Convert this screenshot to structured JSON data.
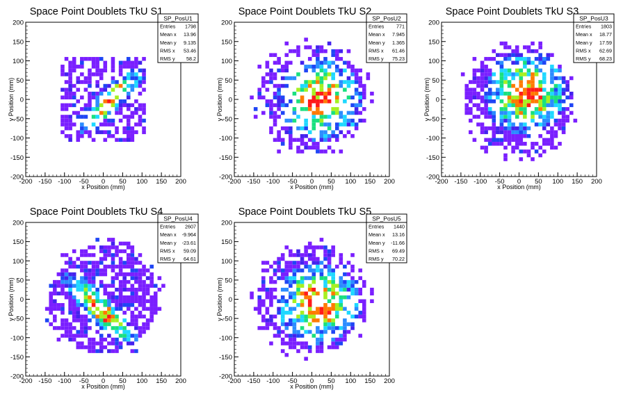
{
  "chart_data": [
    {
      "type": "heatmap",
      "title": "Space Point Doublets TkU S1",
      "xlabel": "x Position (mm)",
      "ylabel": "y Position (mm)",
      "xlim": [
        -200,
        200
      ],
      "ylim": [
        -200,
        200
      ],
      "xticks": [
        -200,
        -150,
        -100,
        -50,
        0,
        50,
        100,
        150,
        200
      ],
      "yticks": [
        -200,
        -150,
        -100,
        -50,
        0,
        50,
        100,
        150,
        200
      ],
      "bin_size": 10,
      "distribution": {
        "shape": "diagonal-band",
        "center": [
          20,
          0
        ],
        "spread": 90,
        "density": 0.55,
        "seed": 11
      },
      "stats": {
        "name": "SP_PosU1",
        "rows": [
          {
            "label": "Entries",
            "value": "1798"
          },
          {
            "label": "Mean x",
            "value": "13.96"
          },
          {
            "label": "Mean y",
            "value": "9.135"
          },
          {
            "label": "RMS x",
            "value": "53.46"
          },
          {
            "label": "RMS y",
            "value": "58.2"
          }
        ]
      }
    },
    {
      "type": "heatmap",
      "title": "Space Point Doublets TkU S2",
      "xlabel": "x Position (mm)",
      "ylabel": "y Position (mm)",
      "xlim": [
        -200,
        200
      ],
      "ylim": [
        -200,
        200
      ],
      "xticks": [
        -200,
        -150,
        -100,
        -50,
        0,
        50,
        100,
        150,
        200
      ],
      "yticks": [
        -200,
        -150,
        -100,
        -50,
        0,
        50,
        100,
        150,
        200
      ],
      "bin_size": 10,
      "distribution": {
        "shape": "blob",
        "center": [
          20,
          0
        ],
        "spread": 140,
        "density": 0.45,
        "seed": 22
      },
      "stats": {
        "name": "SP_PosU2",
        "rows": [
          {
            "label": "Entries",
            "value": "771"
          },
          {
            "label": "Mean x",
            "value": "7.945"
          },
          {
            "label": "Mean y",
            "value": "1.365"
          },
          {
            "label": "RMS x",
            "value": "61.46"
          },
          {
            "label": "RMS y",
            "value": "75.23"
          }
        ]
      }
    },
    {
      "type": "heatmap",
      "title": "Space Point Doublets TkU S3",
      "xlabel": "x Position (mm)",
      "ylabel": "y Position (mm)",
      "xlim": [
        -200,
        200
      ],
      "ylim": [
        -200,
        200
      ],
      "xticks": [
        -200,
        -150,
        -100,
        -50,
        0,
        50,
        100,
        150,
        200
      ],
      "yticks": [
        -200,
        -150,
        -100,
        -50,
        0,
        50,
        100,
        150,
        200
      ],
      "bin_size": 10,
      "distribution": {
        "shape": "blob",
        "center": [
          20,
          15
        ],
        "spread": 140,
        "density": 0.6,
        "seed": 33
      },
      "stats": {
        "name": "SP_PosU3",
        "rows": [
          {
            "label": "Entries",
            "value": "1803"
          },
          {
            "label": "Mean x",
            "value": "18.77"
          },
          {
            "label": "Mean y",
            "value": "17.59"
          },
          {
            "label": "RMS x",
            "value": "62.69"
          },
          {
            "label": "RMS y",
            "value": "68.23"
          }
        ]
      }
    },
    {
      "type": "heatmap",
      "title": "Space Point Doublets TkU S4",
      "xlabel": "x Position (mm)",
      "ylabel": "y Position (mm)",
      "xlim": [
        -200,
        200
      ],
      "ylim": [
        -200,
        200
      ],
      "xticks": [
        -200,
        -150,
        -100,
        -50,
        0,
        50,
        100,
        150,
        200
      ],
      "yticks": [
        -200,
        -150,
        -100,
        -50,
        0,
        50,
        100,
        150,
        200
      ],
      "bin_size": 10,
      "distribution": {
        "shape": "anti-diagonal-band",
        "center": [
          -10,
          -25
        ],
        "spread": 140,
        "density": 0.7,
        "seed": 44
      },
      "stats": {
        "name": "SP_PosU4",
        "rows": [
          {
            "label": "Entries",
            "value": "2607"
          },
          {
            "label": "Mean x",
            "value": "-9.964"
          },
          {
            "label": "Mean y",
            "value": "-23.61"
          },
          {
            "label": "RMS x",
            "value": "59.09"
          },
          {
            "label": "RMS y",
            "value": "64.61"
          }
        ]
      }
    },
    {
      "type": "heatmap",
      "title": "Space Point Doublets TkU S5",
      "xlabel": "x Position (mm)",
      "ylabel": "y Position (mm)",
      "xlim": [
        -200,
        200
      ],
      "ylim": [
        -200,
        200
      ],
      "xticks": [
        -200,
        -150,
        -100,
        -50,
        0,
        50,
        100,
        150,
        200
      ],
      "yticks": [
        -200,
        -150,
        -100,
        -50,
        0,
        50,
        100,
        150,
        200
      ],
      "bin_size": 10,
      "distribution": {
        "shape": "blob",
        "center": [
          15,
          -10
        ],
        "spread": 140,
        "density": 0.55,
        "seed": 55
      },
      "stats": {
        "name": "SP_PosU5",
        "rows": [
          {
            "label": "Entries",
            "value": "1440"
          },
          {
            "label": "Mean x",
            "value": "13.16"
          },
          {
            "label": "Mean y",
            "value": "-11.66"
          },
          {
            "label": "RMS x",
            "value": "69.49"
          },
          {
            "label": "RMS y",
            "value": "70.22"
          }
        ]
      }
    }
  ],
  "colors": {
    "palette": [
      "#7a1fff",
      "#4422ee",
      "#1f45f5",
      "#2b8cff",
      "#1ed8ff",
      "#19e07f",
      "#a6f020",
      "#ff7a00",
      "#ff1a1a"
    ],
    "frame": "#000000",
    "text": "#000000"
  }
}
